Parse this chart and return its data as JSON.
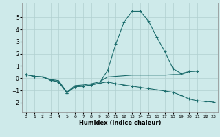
{
  "xlabel": "Humidex (Indice chaleur)",
  "background_color": "#ceeaea",
  "grid_color": "#b0d0d0",
  "line_color": "#1a6b6b",
  "curve1_x": [
    0,
    1,
    2,
    3,
    4,
    5,
    6,
    7,
    8,
    9,
    10,
    11,
    12,
    13,
    14,
    15,
    16,
    17,
    18,
    19,
    20,
    21
  ],
  "curve1_y": [
    0.3,
    0.15,
    0.1,
    -0.15,
    -0.3,
    -1.2,
    -0.7,
    -0.65,
    -0.55,
    -0.4,
    0.65,
    2.8,
    4.6,
    5.5,
    5.5,
    4.7,
    3.4,
    2.2,
    0.8,
    0.4,
    0.55,
    0.6
  ],
  "curve2_x": [
    0,
    1,
    2,
    3,
    4,
    5,
    6,
    7,
    8,
    9,
    10,
    11,
    12,
    13,
    14,
    15,
    16,
    17,
    18,
    19,
    20,
    21,
    22,
    23
  ],
  "curve2_y": [
    0.3,
    0.15,
    0.1,
    -0.15,
    -0.3,
    -1.2,
    -0.7,
    -0.65,
    -0.55,
    -0.4,
    -0.3,
    -0.45,
    -0.55,
    -0.65,
    -0.75,
    -0.85,
    -0.95,
    -1.05,
    -1.15,
    -1.4,
    -1.7,
    -1.85,
    -1.9,
    -1.95
  ],
  "curve3_x": [
    0,
    1,
    2,
    3,
    4,
    5,
    6,
    7,
    8,
    9,
    10,
    11,
    12,
    13,
    14,
    15,
    16,
    17,
    18,
    19,
    20,
    21
  ],
  "curve3_y": [
    0.3,
    0.15,
    0.1,
    -0.1,
    -0.2,
    -1.15,
    -0.6,
    -0.55,
    -0.45,
    -0.3,
    0.1,
    0.15,
    0.2,
    0.25,
    0.25,
    0.25,
    0.25,
    0.25,
    0.3,
    0.3,
    0.55,
    0.6
  ],
  "ylim": [
    -2.8,
    6.2
  ],
  "xlim": [
    -0.5,
    23.5
  ],
  "yticks": [
    -2,
    -1,
    0,
    1,
    2,
    3,
    4,
    5
  ],
  "xticks": [
    0,
    1,
    2,
    3,
    4,
    5,
    6,
    7,
    8,
    9,
    10,
    11,
    12,
    13,
    14,
    15,
    16,
    17,
    18,
    19,
    20,
    21,
    22,
    23
  ]
}
